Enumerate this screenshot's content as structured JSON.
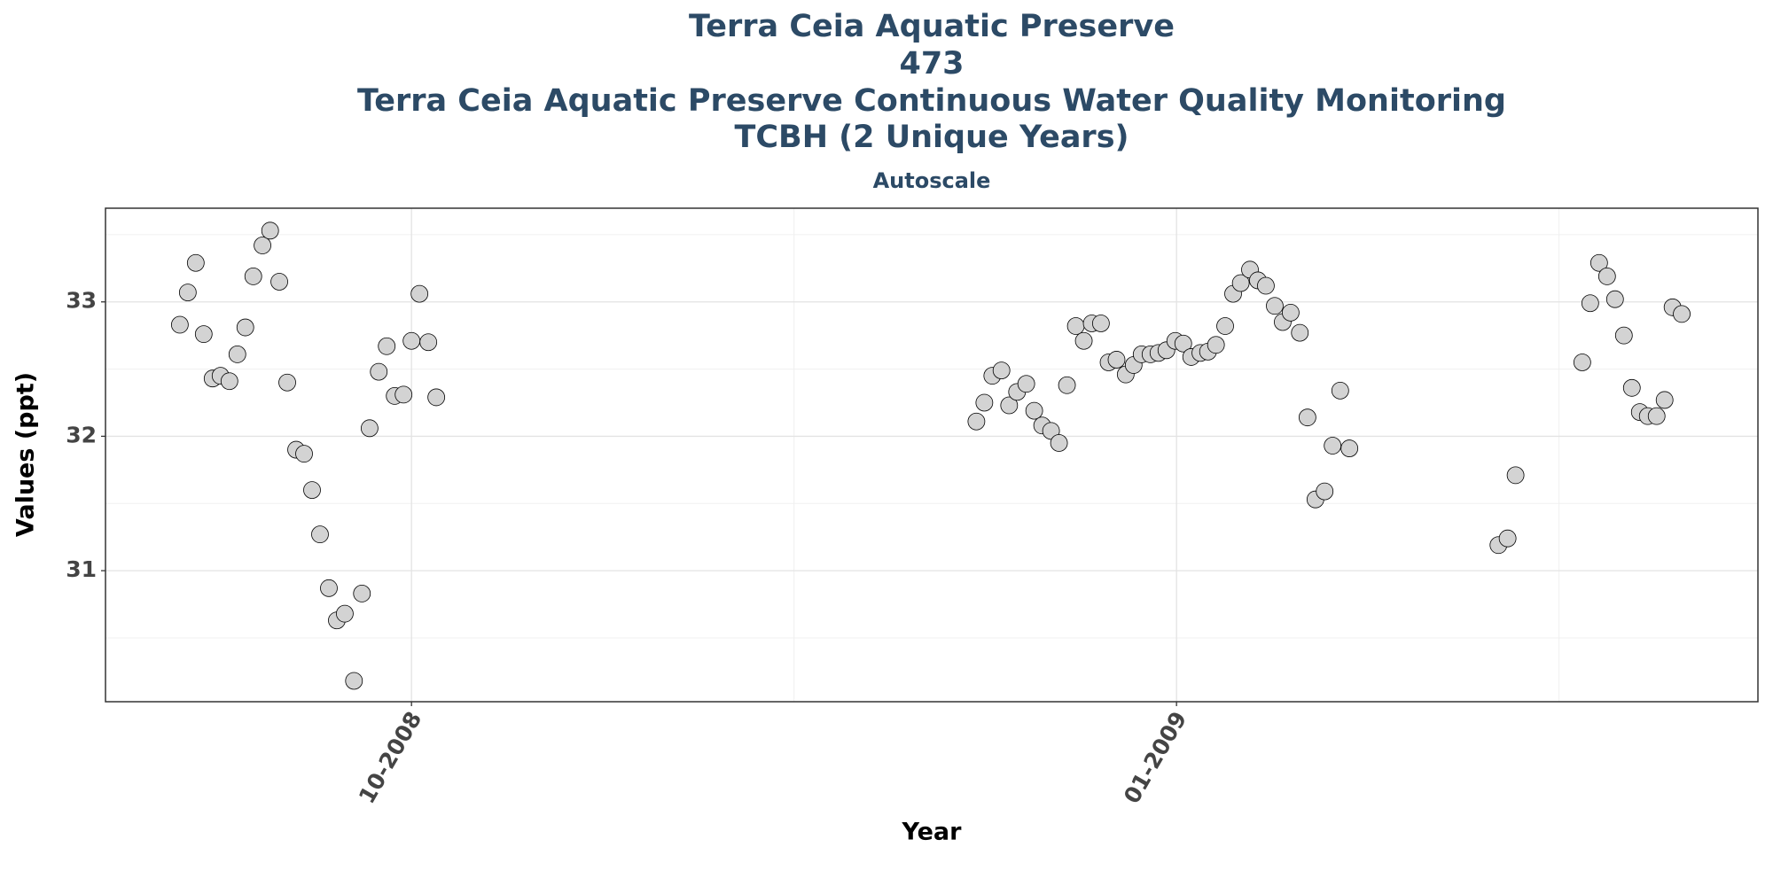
{
  "chart_data": {
    "type": "scatter",
    "title": [
      "Terra Ceia Aquatic Preserve",
      "473",
      "Terra Ceia Aquatic Preserve Continuous Water Quality Monitoring",
      "TCBH (2 Unique Years)"
    ],
    "subtitle": "Autoscale",
    "x_label": "Year",
    "y_label": "Values (ppt)",
    "color": "#d3d3d3",
    "edge_color": "#000000",
    "grid": true,
    "xlim": [
      2008.65,
      2009.19
    ],
    "xticks": [
      {
        "value": 2008.75,
        "label": "10-2008"
      },
      {
        "value": 2009.0,
        "label": "01-2009"
      }
    ],
    "ylim": [
      30.025,
      33.697
    ],
    "yticks": [
      31,
      32,
      33
    ],
    "x": [
      2008.6743,
      2008.6769,
      2008.6795,
      2008.6821,
      2008.685,
      2008.6876,
      2008.6905,
      2008.6931,
      2008.6957,
      2008.6983,
      2008.7013,
      2008.7038,
      2008.7068,
      2008.7094,
      2008.7123,
      2008.7149,
      2008.7175,
      2008.7201,
      2008.723,
      2008.7256,
      2008.7282,
      2008.7312,
      2008.7338,
      2008.7363,
      2008.7393,
      2008.7419,
      2008.7445,
      2008.7474,
      2008.75,
      2008.7526,
      2008.7555,
      2008.7581,
      2008.9346,
      2008.9372,
      2008.9398,
      2008.9428,
      2008.9453,
      2008.9479,
      2008.9509,
      2008.9535,
      2008.9561,
      2008.959,
      2008.9616,
      2008.9642,
      2008.9671,
      2008.9697,
      2008.9723,
      2008.9753,
      2008.9778,
      2008.9804,
      2008.9834,
      2008.986,
      2008.9886,
      2008.9915,
      2008.9941,
      2008.9967,
      2008.9996,
      2009.0022,
      2009.0048,
      2009.0078,
      2009.0103,
      2009.0129,
      2009.0159,
      2009.0185,
      2009.021,
      2009.024,
      2009.0266,
      2009.0292,
      2009.0321,
      2009.0347,
      2009.0373,
      2009.0403,
      2009.0428,
      2009.0454,
      2009.0484,
      2009.051,
      2009.0535,
      2009.0565,
      2009.1052,
      2009.1082,
      2009.1108,
      2009.1326,
      2009.1352,
      2009.1381,
      2009.1407,
      2009.1433,
      2009.1462,
      2009.1488,
      2009.1514,
      2009.154,
      2009.1569,
      2009.1595,
      2009.1621,
      2009.1651
    ],
    "values": [
      32.83,
      33.07,
      33.29,
      32.76,
      32.43,
      32.45,
      32.41,
      32.61,
      32.81,
      33.19,
      33.42,
      33.53,
      33.15,
      32.4,
      31.9,
      31.87,
      31.6,
      31.27,
      30.87,
      30.63,
      30.68,
      30.18,
      30.83,
      32.06,
      32.48,
      32.67,
      32.3,
      32.31,
      32.71,
      33.06,
      32.7,
      32.29,
      32.11,
      32.25,
      32.45,
      32.49,
      32.23,
      32.33,
      32.39,
      32.19,
      32.08,
      32.04,
      31.95,
      32.38,
      32.82,
      32.71,
      32.84,
      32.84,
      32.55,
      32.57,
      32.46,
      32.53,
      32.61,
      32.61,
      32.62,
      32.64,
      32.71,
      32.69,
      32.59,
      32.62,
      32.63,
      32.68,
      32.82,
      33.06,
      33.14,
      33.24,
      33.16,
      33.12,
      32.97,
      32.85,
      32.92,
      32.77,
      32.14,
      31.53,
      31.59,
      31.93,
      32.34,
      31.91,
      31.19,
      31.24,
      31.71,
      32.55,
      32.99,
      33.29,
      33.19,
      33.02,
      32.75,
      32.36,
      32.18,
      32.15,
      32.15,
      32.27,
      32.96,
      32.91
    ]
  }
}
